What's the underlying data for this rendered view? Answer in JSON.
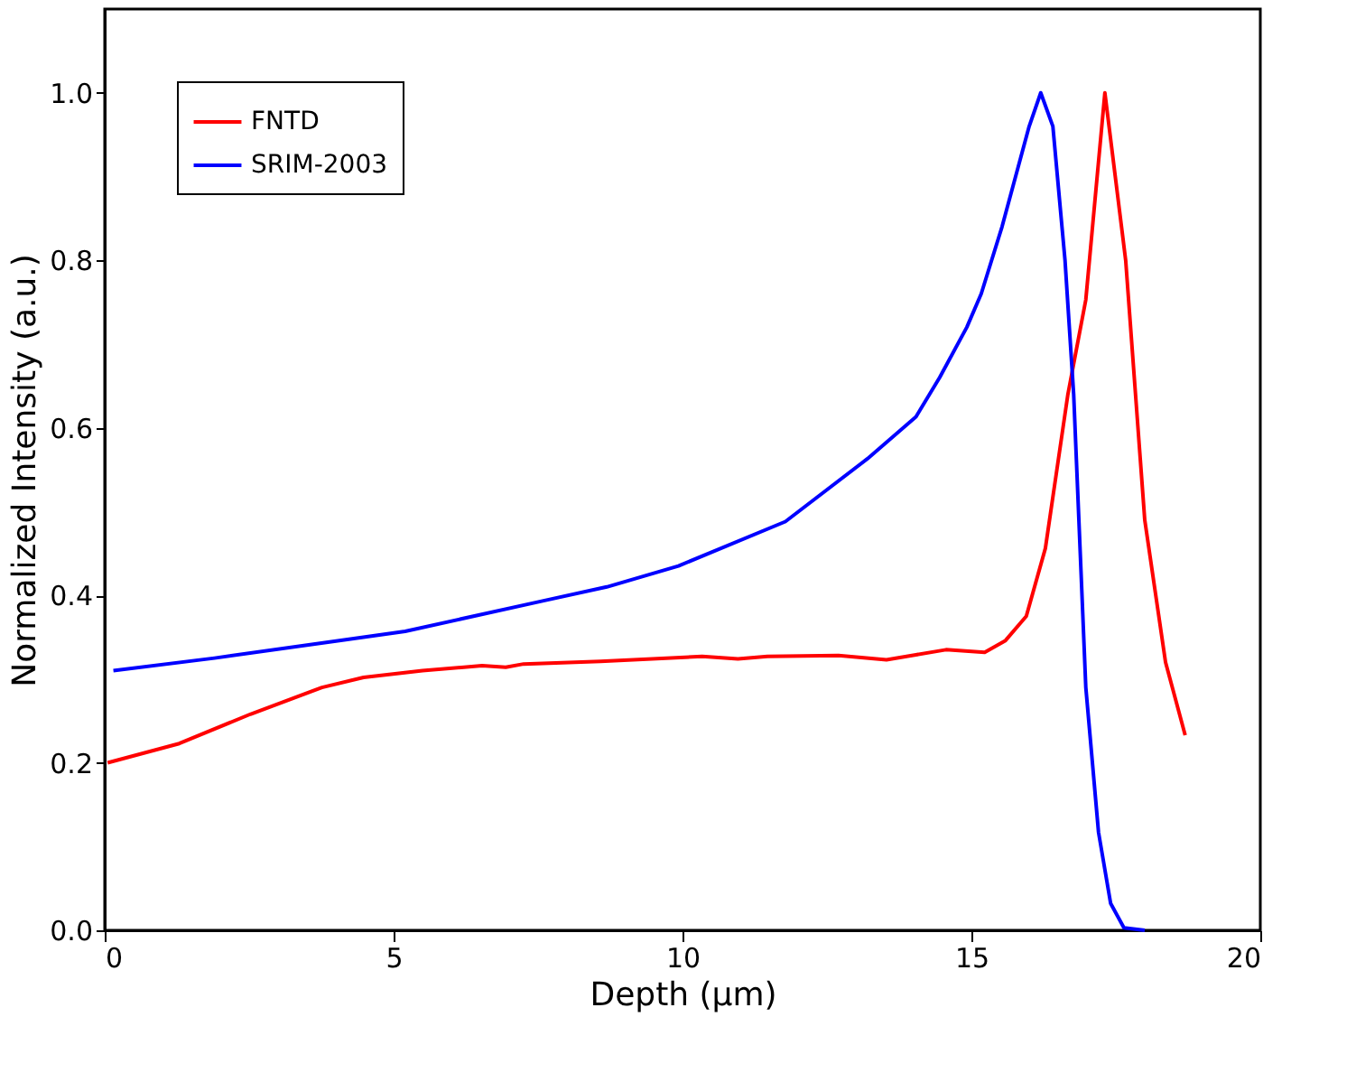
{
  "chart_data": {
    "type": "line",
    "xlabel": "Depth (µm)",
    "ylabel": "Normalized Intensity (a.u.)",
    "xlim": [
      0,
      20
    ],
    "xticks": [
      0,
      5,
      10,
      15,
      20
    ],
    "ylim": [
      0,
      1.1
    ],
    "yticks": [
      {
        "value": 0,
        "label": "0.0"
      },
      {
        "value": 0.2,
        "label": "0.2"
      },
      {
        "value": 0.4,
        "label": "0.4"
      },
      {
        "value": 0.6,
        "label": "0.6"
      },
      {
        "value": 0.8,
        "label": "0.8"
      },
      {
        "value": 1.0,
        "label": "1.0"
      }
    ],
    "grid": false,
    "legend": "top left",
    "marker": "none",
    "line_style": "solid",
    "series": [
      {
        "name": "FNTD",
        "color": "#ff0000",
        "x": [
          0.05,
          1.29,
          2.52,
          3.76,
          4.48,
          5.5,
          6.53,
          6.94,
          7.25,
          8.58,
          10.34,
          10.96,
          11.47,
          12.7,
          13.53,
          14.04,
          14.56,
          15.23,
          15.59,
          15.95,
          16.28,
          16.67,
          16.98,
          17.31,
          17.67,
          18.0,
          18.36,
          18.7
        ],
        "values": [
          0.2,
          0.223,
          0.258,
          0.29,
          0.302,
          0.31,
          0.316,
          0.314,
          0.318,
          0.321,
          0.327,
          0.324,
          0.327,
          0.328,
          0.323,
          0.329,
          0.335,
          0.332,
          0.346,
          0.375,
          0.456,
          0.64,
          0.753,
          1.0,
          0.8,
          0.49,
          0.32,
          0.233
        ]
      },
      {
        "name": "SRIM-2003",
        "color": "#0000ff",
        "x": [
          0.15,
          1.9,
          4.06,
          5.2,
          7.56,
          8.69,
          9.93,
          11.78,
          13.2,
          14.04,
          14.45,
          14.92,
          15.17,
          15.53,
          16.0,
          16.2,
          16.41,
          16.62,
          16.77,
          16.98,
          17.2,
          17.41,
          17.64,
          18.0
        ],
        "values": [
          0.31,
          0.325,
          0.346,
          0.357,
          0.393,
          0.41,
          0.435,
          0.488,
          0.563,
          0.613,
          0.66,
          0.72,
          0.76,
          0.84,
          0.96,
          1.0,
          0.96,
          0.8,
          0.64,
          0.29,
          0.117,
          0.032,
          0.003,
          0.0
        ]
      }
    ]
  }
}
